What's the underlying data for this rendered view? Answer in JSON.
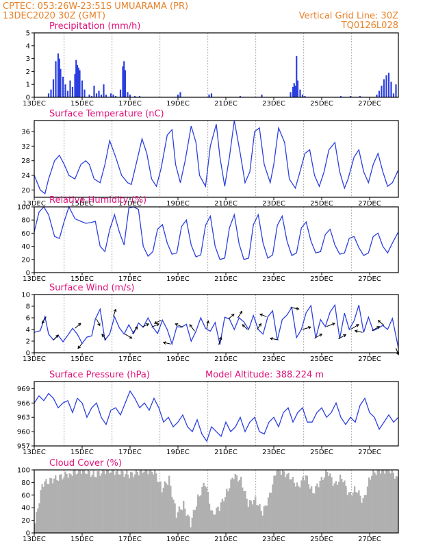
{
  "header": {
    "line1_left": "CPTEC:   053:26W-23:51S   UMUARAMA (PR)",
    "line2_left": "13DEC2020 30Z (GMT)",
    "line2_right": "Vertical Grid Line: 30Z",
    "line3_right": "TQ0126L028"
  },
  "colors": {
    "header": "#e8822a",
    "panel_title": "#e0137a",
    "series": "#2b3fe0",
    "cloud": "#b0b0b0",
    "wind_arrow": "#000000"
  },
  "chart_data": [
    {
      "type": "bar",
      "title": "Precipitation (mm/h)",
      "ylim": [
        0,
        5
      ],
      "yticks": [
        "0",
        "1",
        "2",
        "3",
        "4",
        "5"
      ],
      "xtick_labels": [
        "13DEC",
        "15DEC",
        "17DEC",
        "19DEC",
        "21DEC",
        "23DEC",
        "25DEC",
        "27DEC"
      ],
      "x_day_range": [
        13,
        28.2
      ],
      "grid": "vertical dashed",
      "x": [
        13.6,
        13.7,
        13.8,
        13.9,
        14.0,
        14.05,
        14.1,
        14.2,
        14.3,
        14.4,
        14.5,
        14.6,
        14.7,
        14.75,
        14.8,
        14.85,
        14.9,
        15.0,
        15.1,
        15.3,
        15.4,
        15.5,
        15.6,
        15.7,
        15.8,
        15.9,
        16.0,
        16.2,
        16.3,
        16.4,
        16.6,
        16.7,
        16.75,
        16.8,
        16.9,
        17.0,
        17.2,
        17.4,
        19.0,
        19.1,
        20.3,
        20.4,
        21.6,
        22.5,
        23.7,
        23.8,
        23.85,
        23.9,
        23.95,
        24.0,
        24.1,
        24.2,
        24.3,
        25.8,
        26.2,
        26.6,
        27.3,
        27.4,
        27.5,
        27.6,
        27.7,
        27.8,
        27.9,
        28.0,
        28.1
      ],
      "values": [
        0.3,
        0.6,
        1.4,
        2.8,
        3.4,
        3.0,
        2.2,
        1.6,
        1.0,
        0.5,
        1.3,
        0.8,
        1.8,
        2.9,
        2.5,
        2.3,
        2.1,
        1.3,
        0.6,
        0.2,
        0.1,
        0.9,
        0.3,
        0.5,
        0.2,
        1.0,
        0.2,
        0.3,
        0.2,
        0.1,
        0.6,
        2.4,
        2.8,
        2.1,
        0.4,
        0.2,
        0.1,
        0.1,
        0.2,
        0.4,
        0.2,
        0.3,
        0.1,
        0.2,
        0.4,
        0.8,
        1.1,
        0.9,
        3.2,
        1.3,
        0.6,
        0.2,
        0.1,
        0.1,
        0.1,
        0.1,
        0.2,
        0.5,
        0.9,
        1.4,
        1.7,
        1.9,
        1.2,
        0.3,
        1.0
      ]
    },
    {
      "type": "line",
      "title": "Surface Temperature (nC)",
      "ylim": [
        18,
        39
      ],
      "yticks": [
        "20",
        "24",
        "28",
        "32",
        "36"
      ],
      "xtick_labels": [
        "13DEC",
        "15DEC",
        "17DEC",
        "19DEC",
        "21DEC",
        "23DEC",
        "25DEC",
        "27DEC"
      ],
      "x_day_range": [
        13,
        28.2
      ],
      "x": [
        13.0,
        13.25,
        13.45,
        13.6,
        13.85,
        14.05,
        14.25,
        14.45,
        14.7,
        14.95,
        15.15,
        15.3,
        15.5,
        15.75,
        15.95,
        16.15,
        16.4,
        16.65,
        16.9,
        17.05,
        17.25,
        17.5,
        17.7,
        17.9,
        18.1,
        18.3,
        18.55,
        18.75,
        18.9,
        19.1,
        19.3,
        19.55,
        19.75,
        19.9,
        20.15,
        20.35,
        20.6,
        20.75,
        20.95,
        21.15,
        21.35,
        21.6,
        21.8,
        22.0,
        22.2,
        22.4,
        22.6,
        22.85,
        23.0,
        23.2,
        23.45,
        23.65,
        23.9,
        24.05,
        24.3,
        24.5,
        24.7,
        24.9,
        25.1,
        25.3,
        25.55,
        25.75,
        25.95,
        26.1,
        26.35,
        26.55,
        26.75,
        26.95,
        27.15,
        27.35,
        27.55,
        27.75,
        27.95,
        28.2
      ],
      "values": [
        24,
        20,
        19,
        23,
        28,
        29.5,
        27,
        24,
        23,
        27,
        28,
        27,
        23,
        22,
        27,
        33.5,
        29,
        24,
        22,
        21.5,
        27,
        34,
        30,
        23,
        21,
        26,
        35,
        36.5,
        27,
        22,
        28,
        37.5,
        33,
        24,
        21,
        32,
        38,
        29,
        21,
        29,
        39,
        30,
        22,
        25,
        36,
        37,
        27,
        22,
        27,
        37,
        33,
        23,
        20.5,
        24,
        30,
        31,
        24,
        21,
        25,
        31,
        33,
        25,
        20.5,
        23,
        29,
        31,
        25,
        22,
        27,
        30,
        25,
        21,
        22,
        25.5
      ]
    },
    {
      "type": "line",
      "title": "Relative Humidity (%)",
      "ylim": [
        0,
        100
      ],
      "yticks": [
        "0",
        "20",
        "40",
        "60",
        "80",
        "100"
      ],
      "xtick_labels": [
        "13DEC",
        "15DEC",
        "17DEC",
        "19DEC",
        "21DEC",
        "23DEC",
        "25DEC",
        "27DEC"
      ],
      "x_day_range": [
        13,
        28.2
      ],
      "x": [
        13.0,
        13.2,
        13.4,
        13.6,
        13.85,
        14.05,
        14.25,
        14.45,
        14.7,
        14.95,
        15.15,
        15.35,
        15.55,
        15.75,
        15.95,
        16.15,
        16.35,
        16.55,
        16.75,
        16.95,
        17.15,
        17.35,
        17.55,
        17.75,
        17.95,
        18.15,
        18.35,
        18.55,
        18.75,
        18.95,
        19.15,
        19.35,
        19.55,
        19.75,
        19.95,
        20.15,
        20.35,
        20.55,
        20.75,
        20.95,
        21.15,
        21.35,
        21.55,
        21.75,
        21.95,
        22.15,
        22.35,
        22.55,
        22.75,
        22.95,
        23.15,
        23.35,
        23.55,
        23.75,
        23.95,
        24.15,
        24.35,
        24.55,
        24.75,
        24.95,
        25.15,
        25.35,
        25.55,
        25.75,
        25.95,
        26.15,
        26.35,
        26.55,
        26.75,
        26.95,
        27.15,
        27.35,
        27.55,
        27.75,
        27.95,
        28.2
      ],
      "values": [
        62,
        92,
        100,
        88,
        55,
        52,
        78,
        100,
        82,
        78,
        75,
        76,
        78,
        40,
        32,
        65,
        88,
        62,
        42,
        98,
        100,
        96,
        40,
        25,
        32,
        66,
        73,
        45,
        28,
        30,
        70,
        80,
        42,
        24,
        27,
        72,
        86,
        40,
        20,
        22,
        68,
        88,
        44,
        20,
        22,
        73,
        88,
        45,
        22,
        27,
        72,
        86,
        48,
        26,
        30,
        68,
        77,
        48,
        30,
        32,
        58,
        66,
        42,
        28,
        30,
        52,
        55,
        38,
        26,
        30,
        55,
        60,
        40,
        30,
        45,
        62
      ]
    },
    {
      "type": "line",
      "title": "Surface Wind (m/s)",
      "ylim": [
        0,
        10
      ],
      "yticks": [
        "0",
        "2",
        "4",
        "6",
        "8",
        "10"
      ],
      "xtick_labels": [
        "13DEC",
        "15DEC",
        "17DEC",
        "19DEC",
        "21DEC",
        "23DEC",
        "25DEC",
        "27DEC"
      ],
      "x_day_range": [
        13,
        28.2
      ],
      "x": [
        13.0,
        13.25,
        13.45,
        13.6,
        13.8,
        14.0,
        14.2,
        14.4,
        14.6,
        14.8,
        15.0,
        15.2,
        15.4,
        15.55,
        15.75,
        15.95,
        16.15,
        16.35,
        16.55,
        16.75,
        16.95,
        17.15,
        17.35,
        17.55,
        17.75,
        17.95,
        18.15,
        18.35,
        18.55,
        18.75,
        18.95,
        19.15,
        19.35,
        19.55,
        19.75,
        19.95,
        20.15,
        20.35,
        20.55,
        20.75,
        20.95,
        21.15,
        21.35,
        21.55,
        21.75,
        21.95,
        22.15,
        22.35,
        22.55,
        22.75,
        22.95,
        23.15,
        23.35,
        23.55,
        23.75,
        23.95,
        24.15,
        24.35,
        24.55,
        24.75,
        24.95,
        25.15,
        25.35,
        25.55,
        25.75,
        25.95,
        26.15,
        26.35,
        26.55,
        26.75,
        26.95,
        27.15,
        27.35,
        27.55,
        27.75,
        27.95,
        28.2
      ],
      "values": [
        3.5,
        3.8,
        6.2,
        3.2,
        2.2,
        3.0,
        1.9,
        3.0,
        4.2,
        3.2,
        1.6,
        2.7,
        2.9,
        5.8,
        7.5,
        2.2,
        3.2,
        6.2,
        4.3,
        3.2,
        4.8,
        3.3,
        5.1,
        4.4,
        6.0,
        4.4,
        3.3,
        5.6,
        4.0,
        1.5,
        4.5,
        4.4,
        4.9,
        2.0,
        3.7,
        6.0,
        4.2,
        3.7,
        5.2,
        1.4,
        6.1,
        5.8,
        4.0,
        6.0,
        5.3,
        4.0,
        6.4,
        4.0,
        3.2,
        6.2,
        7.2,
        2.2,
        5.7,
        6.5,
        7.8,
        2.6,
        4.0,
        6.9,
        8.1,
        2.5,
        5.7,
        4.5,
        7.0,
        8.2,
        2.4,
        6.8,
        4.0,
        5.5,
        8.2,
        3.5,
        6.1,
        3.8,
        4.2,
        4.7,
        4.0,
        5.9,
        0.8
      ],
      "wind_vectors": {
        "x": [
          13.5,
          13.8,
          14.7,
          15.0,
          15.6,
          16.0,
          16.3,
          16.8,
          17.1,
          17.5,
          17.9,
          18.3,
          18.7,
          19.2,
          19.7,
          20.2,
          20.7,
          21.1,
          21.5,
          21.9,
          22.3,
          22.7,
          23.2,
          23.7,
          24.2,
          24.7,
          25.2,
          25.7,
          26.2,
          26.7,
          27.1,
          27.6,
          28.1
        ],
        "u": [
          -0.5,
          0.6,
          0.7,
          -0.5,
          0.4,
          -0.5,
          0.3,
          0.8,
          0.6,
          0.8,
          0.9,
          -0.8,
          -0.9,
          -0.9,
          -0.6,
          0.2,
          0.3,
          0.7,
          0.5,
          -0.6,
          0.5,
          -0.8,
          -1.0,
          1.0,
          1.0,
          0.9,
          1.0,
          0.9,
          1.0,
          -0.9,
          0.9,
          -0.7,
          0.3
        ],
        "v": [
          -0.8,
          0.6,
          0.6,
          -0.6,
          -0.8,
          0.7,
          0.9,
          -0.5,
          0.8,
          0.4,
          0.4,
          -0.4,
          0.2,
          0.4,
          0.8,
          0.9,
          0.9,
          0.6,
          0.8,
          0.6,
          0.7,
          0.3,
          0.2,
          -0.2,
          0.3,
          0.5,
          0.4,
          0.5,
          0.6,
          0.2,
          0.5,
          0.6,
          -0.8
        ]
      }
    },
    {
      "type": "line",
      "title": "Surface Pressure (hPa)",
      "annotation": "Model Altitude: 388.224  m",
      "ylim": [
        957,
        970.5
      ],
      "yticks": [
        "957",
        "960",
        "963",
        "966",
        "969"
      ],
      "xtick_labels": [
        "13DEC",
        "15DEC",
        "17DEC",
        "19DEC",
        "21DEC",
        "23DEC",
        "25DEC",
        "27DEC"
      ],
      "x_day_range": [
        13,
        28.2
      ],
      "x": [
        13.0,
        13.2,
        13.4,
        13.6,
        13.8,
        14.0,
        14.2,
        14.4,
        14.6,
        14.8,
        15.0,
        15.2,
        15.4,
        15.6,
        15.8,
        16.0,
        16.2,
        16.4,
        16.6,
        16.8,
        17.0,
        17.2,
        17.4,
        17.6,
        17.8,
        18.0,
        18.2,
        18.4,
        18.6,
        18.8,
        19.0,
        19.2,
        19.4,
        19.6,
        19.8,
        20.0,
        20.2,
        20.4,
        20.6,
        20.8,
        21.0,
        21.2,
        21.4,
        21.6,
        21.8,
        22.0,
        22.2,
        22.4,
        22.6,
        22.8,
        23.0,
        23.2,
        23.4,
        23.6,
        23.8,
        24.0,
        24.2,
        24.4,
        24.6,
        24.8,
        25.0,
        25.2,
        25.4,
        25.6,
        25.8,
        26.0,
        26.2,
        26.4,
        26.6,
        26.8,
        27.0,
        27.2,
        27.4,
        27.6,
        27.8,
        28.0,
        28.2
      ],
      "values": [
        966,
        967.5,
        966.5,
        968,
        967,
        965,
        966,
        966.5,
        964,
        967,
        966,
        963,
        965,
        966,
        963,
        961.5,
        964.5,
        965,
        963.5,
        966,
        968.5,
        967,
        965,
        966,
        964.5,
        967,
        965,
        962,
        963,
        961,
        962,
        963.5,
        961,
        960,
        962.5,
        959.5,
        958,
        961,
        960,
        959,
        962,
        960,
        961,
        963,
        960,
        962,
        963,
        960,
        959.5,
        962,
        963,
        961,
        964,
        965,
        962,
        964,
        965,
        962,
        962,
        964,
        965,
        963,
        964,
        966,
        963,
        961.5,
        963,
        962,
        965.5,
        967,
        964,
        963,
        960.5,
        962,
        963.5,
        962,
        963
      ]
    },
    {
      "type": "bar",
      "title": "Cloud Cover (%)",
      "ylim": [
        0,
        100
      ],
      "yticks": [
        "0",
        "20",
        "40",
        "60",
        "80",
        "100"
      ],
      "xtick_labels": [
        "13DEC",
        "15DEC",
        "17DEC",
        "19DEC",
        "21DEC",
        "23DEC",
        "25DEC",
        "27DEC"
      ],
      "x_day_range": [
        13,
        28.2
      ],
      "segments_x": [
        13.0,
        13.3,
        13.8,
        14.5,
        15.0,
        15.5,
        16.0,
        16.5,
        17.0,
        17.5,
        18.0,
        18.3,
        18.6,
        18.9,
        19.2,
        19.5,
        19.8,
        20.1,
        20.4,
        20.7,
        21.0,
        21.3,
        21.6,
        21.9,
        22.2,
        22.5,
        22.8,
        23.1,
        23.4,
        23.7,
        24.0,
        24.3,
        24.6,
        24.9,
        25.2,
        25.5,
        25.8,
        26.1,
        26.4,
        26.7,
        27.0,
        27.3,
        27.6,
        27.9,
        28.2
      ],
      "segments_values": [
        15,
        78,
        85,
        95,
        100,
        92,
        100,
        97,
        92,
        100,
        98,
        70,
        85,
        30,
        45,
        15,
        55,
        80,
        30,
        40,
        65,
        90,
        85,
        45,
        55,
        30,
        62,
        100,
        97,
        85,
        75,
        90,
        65,
        80,
        100,
        75,
        90,
        60,
        70,
        50,
        90,
        100,
        100,
        100,
        80
      ]
    }
  ]
}
